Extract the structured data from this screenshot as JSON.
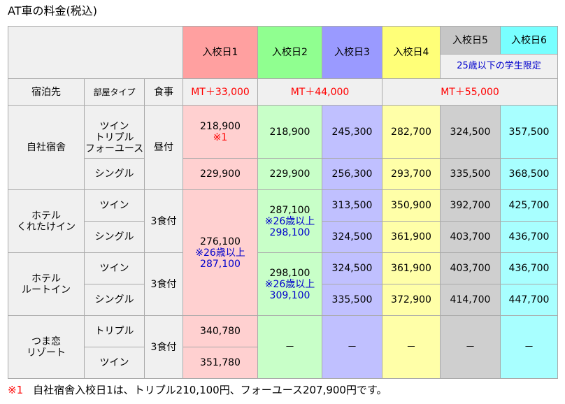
{
  "title": "AT車の料金(税込)",
  "columns": {
    "day1": "入校日1",
    "day2": "入校日2",
    "day3": "入校日3",
    "day4": "入校日4",
    "day5": "入校日5",
    "day6": "入校日6",
    "student_note": "25歳以下の学生限定"
  },
  "subheader": {
    "lodging": "宿泊先",
    "room_type": "部屋タイプ",
    "meals": "食事",
    "price_day1": "MT＋33,000",
    "price_day2_3": "MT＋44,000",
    "price_day4_6": "MT＋55,000"
  },
  "rows": {
    "jisha": {
      "name": "自社宿舎",
      "room1": "ツイン\nトリプル\nフォーユース",
      "room2": "シングル",
      "meal": "昼付",
      "r1": {
        "d1": "218,900",
        "d1_mark": "※1",
        "d2": "218,900",
        "d3": "245,300",
        "d4": "282,700",
        "d5": "324,500",
        "d6": "357,500"
      },
      "r2": {
        "d1": "229,900",
        "d2": "229,900",
        "d3": "256,300",
        "d4": "293,700",
        "d5": "335,500",
        "d6": "368,500"
      }
    },
    "kuretake": {
      "name": "ホテル\nくれたけイン",
      "room1": "ツイン",
      "room2": "シングル",
      "meal": "3食付",
      "d2_price": "287,100",
      "d2_note": "※26歳以上",
      "d2_note_price": "298,100",
      "r1": {
        "d3": "313,500",
        "d4": "350,900",
        "d5": "392,700",
        "d6": "425,700"
      },
      "r2": {
        "d3": "324,500",
        "d4": "361,900",
        "d5": "403,700",
        "d6": "436,700"
      }
    },
    "hotels_day1": {
      "price": "276,100",
      "note": "※26歳以上",
      "note_price": "287,100"
    },
    "route": {
      "name": "ホテル\nルートイン",
      "room1": "ツイン",
      "room2": "シングル",
      "meal": "3食付",
      "d2_price": "298,100",
      "d2_note": "※26歳以上",
      "d2_note_price": "309,100",
      "r1": {
        "d3": "324,500",
        "d4": "361,900",
        "d5": "403,700",
        "d6": "436,700"
      },
      "r2": {
        "d3": "335,500",
        "d4": "372,900",
        "d5": "414,700",
        "d6": "447,700"
      }
    },
    "tsumakoi": {
      "name": "つま恋\nリゾート",
      "room1": "トリプル",
      "room2": "ツイン",
      "meal": "3食付",
      "r1": {
        "d1": "340,780"
      },
      "r2": {
        "d1": "351,780"
      },
      "dash": "－"
    }
  },
  "footnote": {
    "mark": "※1",
    "text": "自社宿舎入校日1は、トリプル210,100円、フォーユース207,900円です。"
  }
}
